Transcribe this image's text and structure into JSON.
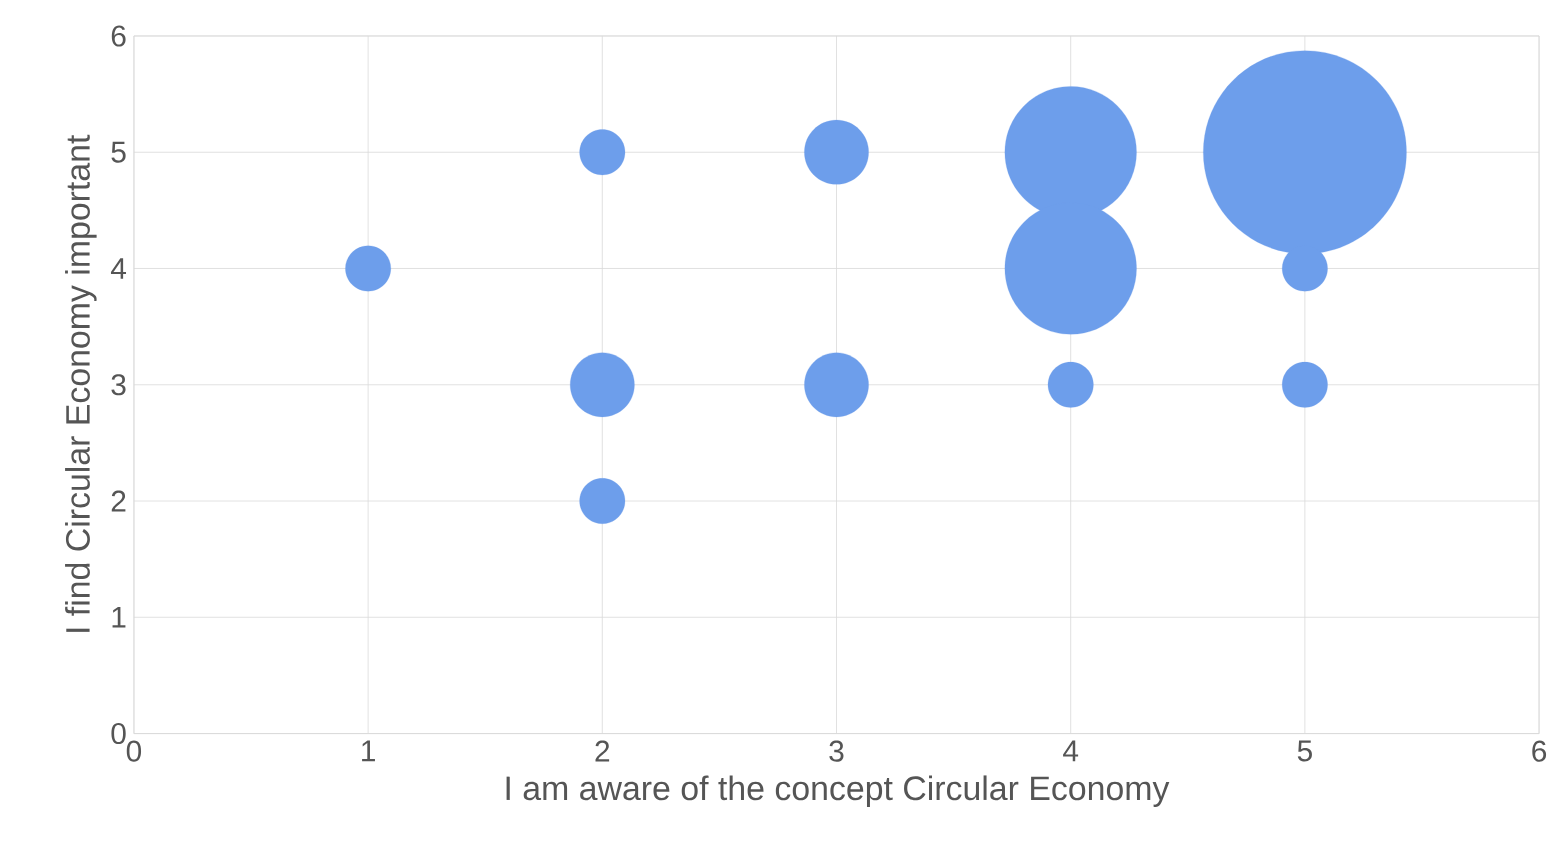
{
  "chart_data": {
    "type": "bubble",
    "xlabel": "I am aware of the concept Circular Economy",
    "ylabel": "I find Circular Economy important",
    "x": [
      1,
      2,
      2,
      2,
      3,
      3,
      4,
      4,
      4,
      5,
      5,
      5
    ],
    "values": [
      4,
      5,
      3,
      2,
      5,
      3,
      5,
      4,
      3,
      5,
      4,
      3
    ],
    "sizes": [
      0.05,
      0.05,
      0.1,
      0.05,
      0.1,
      0.1,
      0.42,
      0.42,
      0.05,
      1,
      0.05,
      0.05
    ],
    "color": "#6d9eeb",
    "xlim": [
      0,
      6
    ],
    "ylim": [
      0,
      6
    ],
    "xticks": [
      0,
      1,
      2,
      3,
      4,
      5,
      6
    ],
    "yticks": [
      0,
      1,
      2,
      3,
      4,
      5,
      6
    ],
    "grid": true,
    "marker": "circle"
  }
}
